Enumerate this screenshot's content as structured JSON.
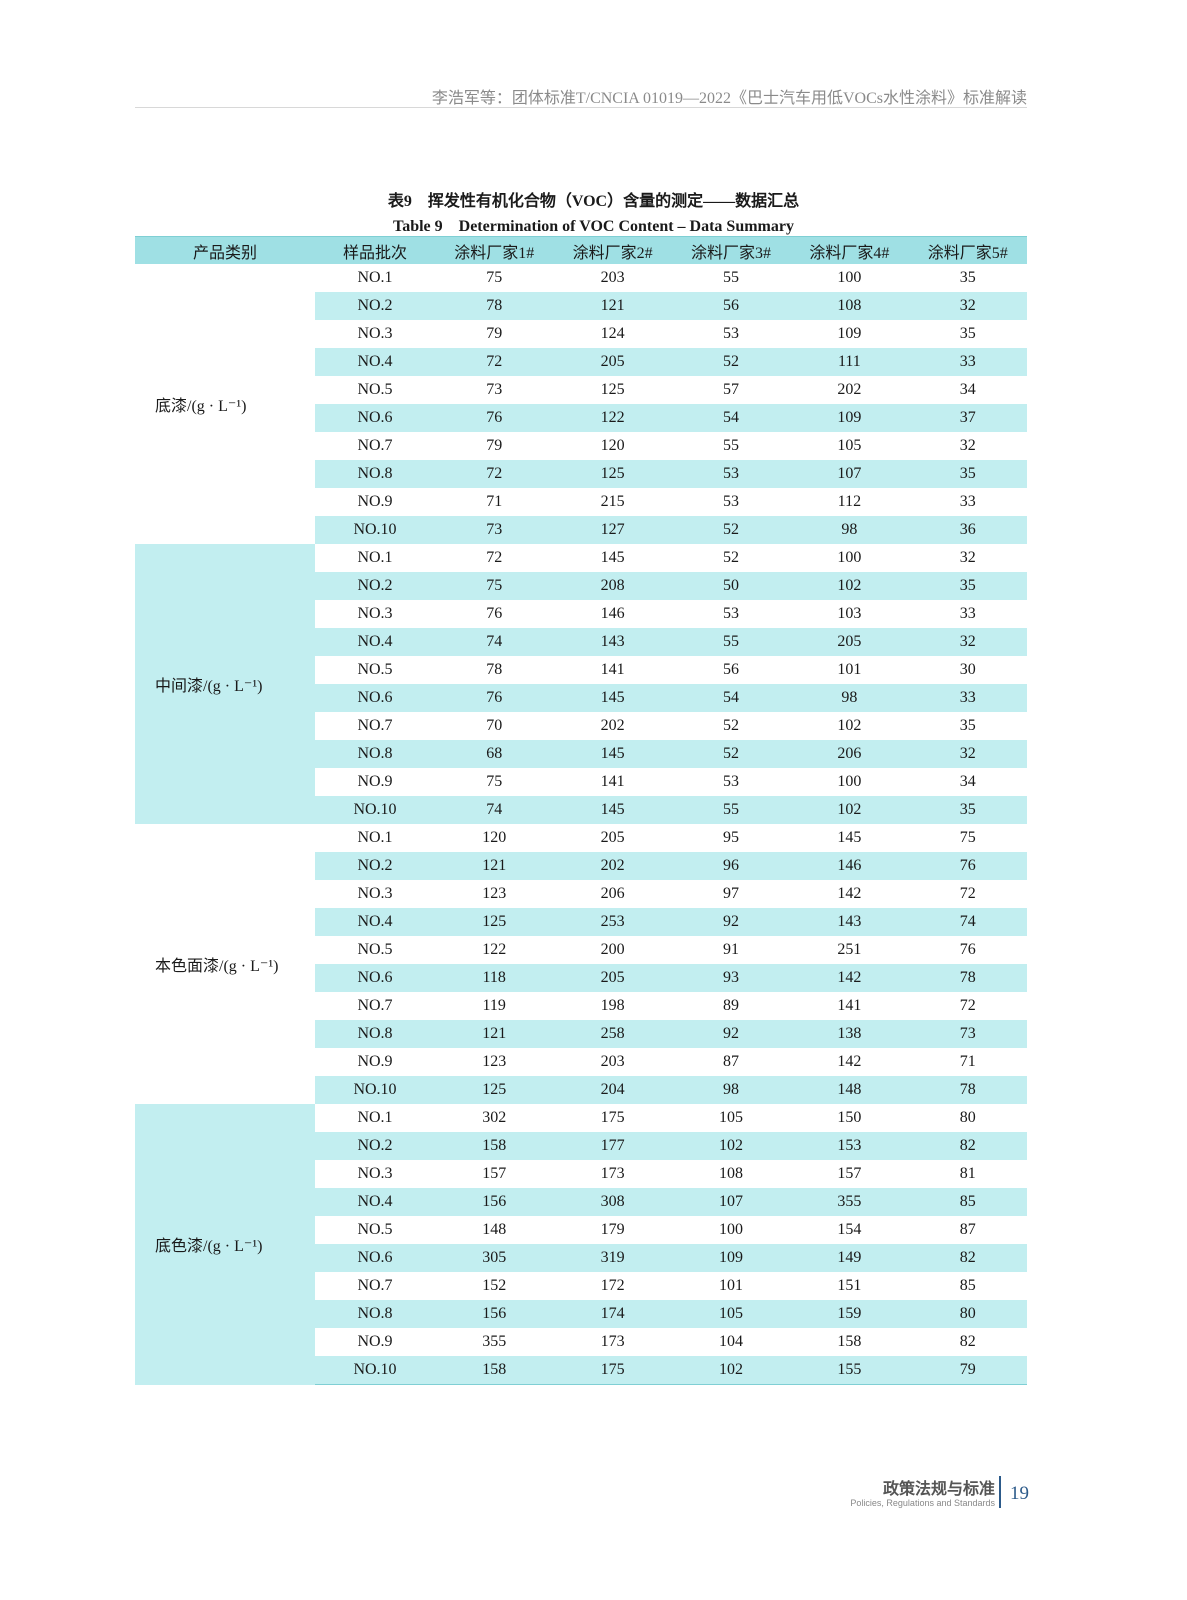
{
  "running_head": "李浩军等：团体标准T/CNCIA 01019—2022《巴士汽车用低VOCs水性涂料》标准解读",
  "caption_cn": "表9　挥发性有机化合物（VOC）含量的测定——数据汇总",
  "caption_en": "Table 9　Determination of VOC Content – Data Summary",
  "headers": [
    "产品类别",
    "样品批次",
    "涂料厂家1#",
    "涂料厂家2#",
    "涂料厂家3#",
    "涂料厂家4#",
    "涂料厂家5#"
  ],
  "colors": {
    "header": "#9fe0e4",
    "stripe": "#c2eef0",
    "accent": "#2c5a8a"
  },
  "groups": [
    {
      "label": "底漆/(g · L⁻¹)",
      "rows": [
        [
          "NO.1",
          "75",
          "203",
          "55",
          "100",
          "35"
        ],
        [
          "NO.2",
          "78",
          "121",
          "56",
          "108",
          "32"
        ],
        [
          "NO.3",
          "79",
          "124",
          "53",
          "109",
          "35"
        ],
        [
          "NO.4",
          "72",
          "205",
          "52",
          "111",
          "33"
        ],
        [
          "NO.5",
          "73",
          "125",
          "57",
          "202",
          "34"
        ],
        [
          "NO.6",
          "76",
          "122",
          "54",
          "109",
          "37"
        ],
        [
          "NO.7",
          "79",
          "120",
          "55",
          "105",
          "32"
        ],
        [
          "NO.8",
          "72",
          "125",
          "53",
          "107",
          "35"
        ],
        [
          "NO.9",
          "71",
          "215",
          "53",
          "112",
          "33"
        ],
        [
          "NO.10",
          "73",
          "127",
          "52",
          "98",
          "36"
        ]
      ]
    },
    {
      "label": "中间漆/(g · L⁻¹)",
      "rows": [
        [
          "NO.1",
          "72",
          "145",
          "52",
          "100",
          "32"
        ],
        [
          "NO.2",
          "75",
          "208",
          "50",
          "102",
          "35"
        ],
        [
          "NO.3",
          "76",
          "146",
          "53",
          "103",
          "33"
        ],
        [
          "NO.4",
          "74",
          "143",
          "55",
          "205",
          "32"
        ],
        [
          "NO.5",
          "78",
          "141",
          "56",
          "101",
          "30"
        ],
        [
          "NO.6",
          "76",
          "145",
          "54",
          "98",
          "33"
        ],
        [
          "NO.7",
          "70",
          "202",
          "52",
          "102",
          "35"
        ],
        [
          "NO.8",
          "68",
          "145",
          "52",
          "206",
          "32"
        ],
        [
          "NO.9",
          "75",
          "141",
          "53",
          "100",
          "34"
        ],
        [
          "NO.10",
          "74",
          "145",
          "55",
          "102",
          "35"
        ]
      ]
    },
    {
      "label": "本色面漆/(g · L⁻¹)",
      "rows": [
        [
          "NO.1",
          "120",
          "205",
          "95",
          "145",
          "75"
        ],
        [
          "NO.2",
          "121",
          "202",
          "96",
          "146",
          "76"
        ],
        [
          "NO.3",
          "123",
          "206",
          "97",
          "142",
          "72"
        ],
        [
          "NO.4",
          "125",
          "253",
          "92",
          "143",
          "74"
        ],
        [
          "NO.5",
          "122",
          "200",
          "91",
          "251",
          "76"
        ],
        [
          "NO.6",
          "118",
          "205",
          "93",
          "142",
          "78"
        ],
        [
          "NO.7",
          "119",
          "198",
          "89",
          "141",
          "72"
        ],
        [
          "NO.8",
          "121",
          "258",
          "92",
          "138",
          "73"
        ],
        [
          "NO.9",
          "123",
          "203",
          "87",
          "142",
          "71"
        ],
        [
          "NO.10",
          "125",
          "204",
          "98",
          "148",
          "78"
        ]
      ]
    },
    {
      "label": "底色漆/(g · L⁻¹)",
      "rows": [
        [
          "NO.1",
          "302",
          "175",
          "105",
          "150",
          "80"
        ],
        [
          "NO.2",
          "158",
          "177",
          "102",
          "153",
          "82"
        ],
        [
          "NO.3",
          "157",
          "173",
          "108",
          "157",
          "81"
        ],
        [
          "NO.4",
          "156",
          "308",
          "107",
          "355",
          "85"
        ],
        [
          "NO.5",
          "148",
          "179",
          "100",
          "154",
          "87"
        ],
        [
          "NO.6",
          "305",
          "319",
          "109",
          "149",
          "82"
        ],
        [
          "NO.7",
          "152",
          "172",
          "101",
          "151",
          "85"
        ],
        [
          "NO.8",
          "156",
          "174",
          "105",
          "159",
          "80"
        ],
        [
          "NO.9",
          "355",
          "173",
          "104",
          "158",
          "82"
        ],
        [
          "NO.10",
          "158",
          "175",
          "102",
          "155",
          "79"
        ]
      ]
    }
  ],
  "footer": {
    "section_cn": "政策法规与标准",
    "section_en": "Policies, Regulations and Standards",
    "page": "19"
  }
}
